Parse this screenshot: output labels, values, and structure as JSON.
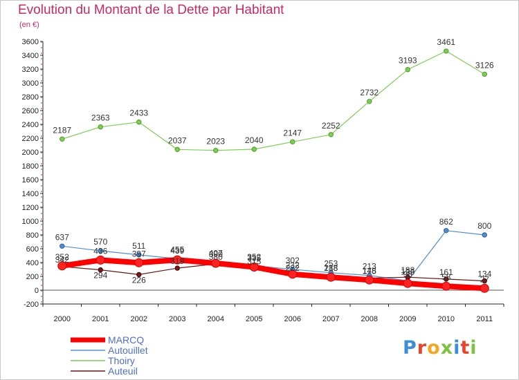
{
  "title": "Evolution du Montant de la Dette par Habitant",
  "subtitle": "(en €)",
  "logo": {
    "text": "Proxiti",
    "colors": [
      "#3a8fd8",
      "#e8452c",
      "#f5a623",
      "#7dc242",
      "#3a8fd8",
      "#e8452c",
      "#7dc242"
    ]
  },
  "chart_data": {
    "type": "line",
    "title": "Evolution du Montant de la Dette par Habitant",
    "subtitle": "(en €)",
    "xlabel": "",
    "ylabel": "",
    "x": [
      "2000",
      "2001",
      "2002",
      "2003",
      "2004",
      "2005",
      "2006",
      "2007",
      "2008",
      "2009",
      "2010",
      "2011"
    ],
    "ylim": [
      -200,
      3600
    ],
    "yticks": [
      -200,
      0,
      200,
      400,
      600,
      800,
      1000,
      1200,
      1400,
      1600,
      1800,
      2000,
      2200,
      2400,
      2600,
      2800,
      3000,
      3200,
      3400,
      3600
    ],
    "grid": false,
    "legend_position": "bottom-left",
    "series": [
      {
        "name": "MARCQ",
        "color": "#ff0000",
        "values": [
          352,
          436,
          397,
          439,
          390,
          335,
          232,
          188,
          148,
          98,
          58,
          27
        ],
        "labels": [
          "352",
          "436",
          "397",
          "439",
          "390",
          "335",
          "232",
          "188",
          "148",
          "98",
          "58",
          "27"
        ]
      },
      {
        "name": "Autouillet",
        "color": "#4d8fd1",
        "values": [
          637,
          570,
          511,
          455,
          407,
          352,
          302,
          253,
          213,
          136,
          862,
          800
        ],
        "labels": [
          "637",
          "570",
          "511",
          "455",
          "407",
          "352",
          "302",
          "253",
          "213",
          "136",
          "862",
          "800"
        ]
      },
      {
        "name": "Thoiry",
        "color": "#7ccf52",
        "values": [
          2187,
          2363,
          2433,
          2037,
          2023,
          2040,
          2147,
          2252,
          2732,
          3193,
          3461,
          3126
        ],
        "labels": [
          "2187",
          "2363",
          "2433",
          "2037",
          "2023",
          "2040",
          "2147",
          "2252",
          "2732",
          "3193",
          "3461",
          "3126"
        ]
      },
      {
        "name": "Auteuil",
        "color": "#6b1414",
        "values": [
          342,
          294,
          226,
          319,
          380,
          315,
          222,
          218,
          175,
          188,
          161,
          134
        ],
        "labels": [
          "342",
          "294",
          "226",
          "319",
          "380",
          "315",
          "222",
          "218",
          "175",
          "188",
          "161",
          "134"
        ]
      }
    ]
  }
}
